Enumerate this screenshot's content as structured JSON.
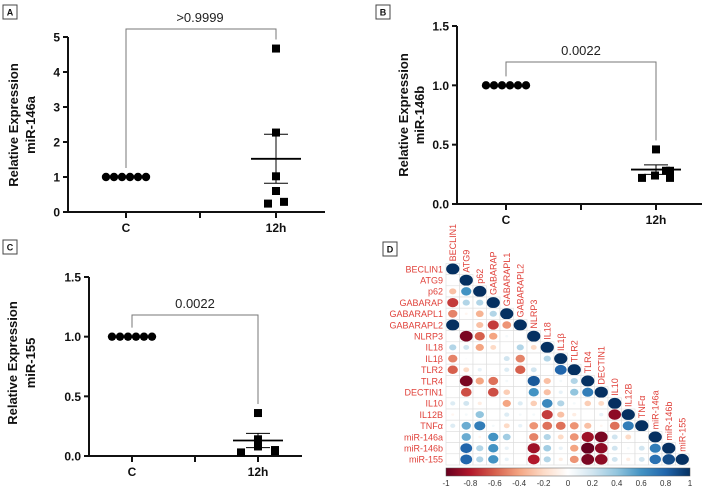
{
  "chart_data": [
    {
      "panel": "A",
      "type": "scatter",
      "title": "",
      "ylabel": [
        "Relative Expression",
        "miR-146a"
      ],
      "categories": [
        "C",
        "12h"
      ],
      "ylim": [
        0,
        5
      ],
      "yticks": [
        "0",
        "1",
        "2",
        "3",
        "4",
        "5"
      ],
      "ytick_values": [
        0,
        1,
        2,
        3,
        4,
        5
      ],
      "series": [
        {
          "name": "C",
          "marker": "circle",
          "values": [
            1,
            1,
            1,
            1,
            1,
            1
          ]
        },
        {
          "name": "12h",
          "marker": "square",
          "values": [
            4.67,
            2.27,
            1.02,
            0.6,
            0.24,
            0.29
          ],
          "mean": 1.52,
          "sem": [
            0.82,
            2.22
          ]
        }
      ],
      "p_value": ">0.9999"
    },
    {
      "panel": "B",
      "type": "scatter",
      "title": "",
      "ylabel": [
        "Relative Expression",
        "miR-146b"
      ],
      "categories": [
        "C",
        "12h"
      ],
      "ylim": [
        0,
        1.5
      ],
      "yticks": [
        "0.0",
        "0.5",
        "1.0",
        "1.5"
      ],
      "ytick_values": [
        0,
        0.5,
        1,
        1.5
      ],
      "series": [
        {
          "name": "C",
          "marker": "circle",
          "values": [
            1,
            1,
            1,
            1,
            1,
            1
          ]
        },
        {
          "name": "12h",
          "marker": "square",
          "values": [
            0.46,
            0.22,
            0.24,
            0.28,
            0.28,
            0.22
          ],
          "mean": 0.29,
          "sem": [
            0.25,
            0.33
          ]
        }
      ],
      "p_value": "0.0022"
    },
    {
      "panel": "C",
      "type": "scatter",
      "title": "",
      "ylabel": [
        "Relative Expression",
        "miR-155"
      ],
      "categories": [
        "C",
        "12h"
      ],
      "ylim": [
        0,
        1.5
      ],
      "yticks": [
        "0.0",
        "0.5",
        "1.0",
        "1.5"
      ],
      "ytick_values": [
        0,
        0.5,
        1,
        1.5
      ],
      "series": [
        {
          "name": "C",
          "marker": "circle",
          "values": [
            1,
            1,
            1,
            1,
            1,
            1
          ]
        },
        {
          "name": "12h",
          "marker": "square",
          "values": [
            0.36,
            0.14,
            0.08,
            0.03,
            0.05,
            0.04
          ],
          "mean": 0.13,
          "sem": [
            0.07,
            0.19
          ]
        }
      ],
      "p_value": "0.0022"
    },
    {
      "panel": "D",
      "type": "heatmap",
      "title": "",
      "labels": [
        "BECLIN1",
        "ATG9",
        "p62",
        "GABARAP",
        "GABARAPL1",
        "GABARAPL2",
        "NLRP3",
        "IL18",
        "IL1β",
        "TLR2",
        "TLR4",
        "DECTIN1",
        "IL10",
        "IL12B",
        "TNFα",
        "miR-146a",
        "miR-146b",
        "miR-155"
      ],
      "lower_triangle": [
        [
          1
        ],
        [
          0,
          1
        ],
        [
          -0.3,
          0.6,
          1
        ],
        [
          -0.7,
          0.3,
          0.3,
          1
        ],
        [
          -0.5,
          -0.05,
          -0.35,
          0.3,
          1
        ],
        [
          1.0,
          0,
          -0.3,
          -0.7,
          -0.45,
          1
        ],
        [
          0,
          -0.95,
          -0.6,
          -0.4,
          0.05,
          0,
          1
        ],
        [
          0.3,
          0.2,
          -0.4,
          -0.2,
          0,
          0.3,
          -0.2,
          1
        ],
        [
          -0.5,
          0.02,
          0,
          0,
          0.2,
          -0.5,
          0,
          0.3,
          1
        ],
        [
          -0.6,
          -0.2,
          0.1,
          0,
          0.15,
          -0.6,
          0.2,
          0,
          0.8,
          1
        ],
        [
          0,
          -0.95,
          -0.4,
          -0.55,
          0.05,
          0,
          0.85,
          -0.3,
          0.05,
          0.3,
          1
        ],
        [
          0,
          -0.65,
          0,
          -0.65,
          -0.25,
          0,
          0.6,
          -0.3,
          0.1,
          0.4,
          0.7,
          1
        ],
        [
          0.15,
          0.2,
          -0.1,
          0,
          -0.4,
          0.15,
          -0.25,
          0.65,
          0.3,
          0.05,
          -0.25,
          -0.2,
          1
        ],
        [
          -0.05,
          0.05,
          0.4,
          0,
          0.15,
          0.05,
          0.05,
          -0.7,
          -0.3,
          -0.1,
          0,
          0.1,
          -0.9,
          1
        ],
        [
          0.15,
          0.5,
          0.7,
          0.05,
          -0.2,
          0.1,
          -0.45,
          -0.55,
          -0.55,
          -0.45,
          -0.3,
          -0.05,
          -0.55,
          0.7,
          1
        ],
        [
          0,
          0.5,
          -0.05,
          0.6,
          0.35,
          0,
          -0.5,
          0.3,
          -0.2,
          -0.45,
          -0.85,
          -0.95,
          0.2,
          -0.2,
          0,
          1
        ],
        [
          0,
          0.8,
          0.3,
          0.6,
          0.1,
          0,
          -0.85,
          0.35,
          0.1,
          -0.4,
          -1,
          -0.9,
          0.2,
          0.05,
          0.2,
          0.7,
          1
        ],
        [
          0,
          0.8,
          0.3,
          0.6,
          0.1,
          0,
          -0.8,
          0.3,
          -0.1,
          -0.45,
          -0.95,
          -0.9,
          0.2,
          -0.1,
          0.2,
          0.75,
          0.9,
          1
        ]
      ],
      "colorbar": {
        "range": [
          -1,
          1
        ],
        "ticks": [
          "-1",
          "-0.8",
          "-0.6",
          "-0.4",
          "-0.2",
          "0",
          "0.2",
          "0.4",
          "0.6",
          "0.8",
          "1"
        ],
        "tick_values": [
          -1,
          -0.8,
          -0.6,
          -0.4,
          -0.2,
          0,
          0.2,
          0.4,
          0.6,
          0.8,
          1
        ],
        "colors": [
          "#67001F",
          "#B2182B",
          "#D6604D",
          "#F4A582",
          "#FDDBC7",
          "#FFFFFF",
          "#D1E5F0",
          "#92C5DE",
          "#4393C3",
          "#2166AC",
          "#053061"
        ]
      }
    }
  ],
  "panel_labels": [
    "A",
    "B",
    "C",
    "D"
  ],
  "colors": {
    "label_red": "#E0413A",
    "marker": "#000000",
    "bracket": "#777777"
  }
}
